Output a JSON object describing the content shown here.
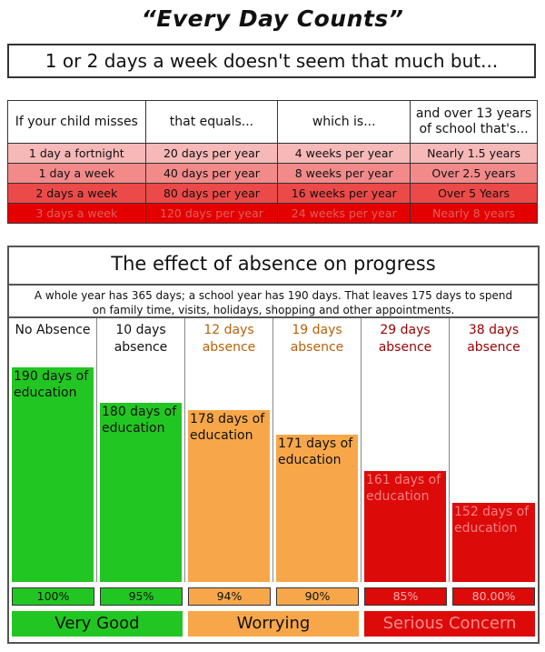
{
  "header": {
    "title": "“Every Day Counts”",
    "subtitle": "1 or 2 days a week doesn't seem that much but..."
  },
  "table": {
    "headers": [
      "If your child misses",
      "that equals...",
      "which is...",
      "and over 13 years of school that's..."
    ],
    "rows": [
      [
        "1 day a fortnight",
        "20 days per year",
        "4 weeks per year",
        "Nearly 1.5 years"
      ],
      [
        "1 day a week",
        "40 days per year",
        "8 weeks per year",
        "Over 2.5 years"
      ],
      [
        "2 days a week",
        "80 days per year",
        "16 weeks per year",
        "Over 5 Years"
      ],
      [
        "3 days a week",
        "120 days per year",
        "24 weeks per year",
        "Nearly 8 years"
      ]
    ]
  },
  "effect": {
    "title": "The effect of absence on progress",
    "description_line1": "A whole year has 365 days; a school year has 190 days.  That leaves 175 days to spend",
    "description_line2": "on family time, visits, holidays, shopping and other appointments.",
    "colors": {
      "green": "#22c622",
      "orange": "#f7a74a",
      "red": "#dd0a0a"
    }
  },
  "chart_data": {
    "type": "bar",
    "categories": [
      "No Absence",
      "10 days absence",
      "12 days absence",
      "19 days absence",
      "29 days absence",
      "38 days absence"
    ],
    "values": [
      190,
      180,
      178,
      171,
      161,
      152
    ],
    "ylim": [
      140,
      190
    ],
    "bar_labels": [
      "190 days of education",
      "180 days of education",
      "178 days of education",
      "171 days of education",
      "161 days of education",
      "152 days of education"
    ],
    "percentages": [
      "100%",
      "95%",
      "94%",
      "90%",
      "85%",
      "80.00%"
    ],
    "colors": [
      "#22c622",
      "#22c622",
      "#f7a74a",
      "#f7a74a",
      "#dd0a0a",
      "#dd0a0a"
    ],
    "header_colors": [
      "#111111",
      "#111111",
      "#b8620a",
      "#b8620a",
      "#9a0000",
      "#9a0000"
    ],
    "bands": [
      {
        "label": "Very Good",
        "color": "#22c622",
        "span": 2
      },
      {
        "label": "Worrying",
        "color": "#f7a74a",
        "span": 2
      },
      {
        "label": "Serious Concern",
        "color": "#dd0a0a",
        "span": 2
      }
    ]
  }
}
